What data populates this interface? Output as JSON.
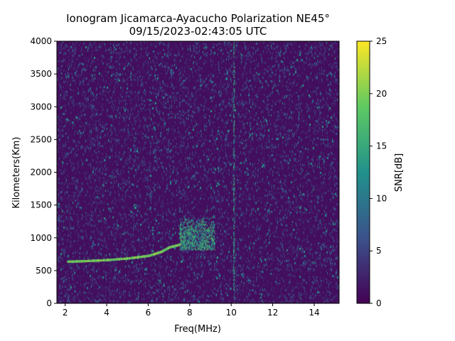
{
  "chart_data": {
    "type": "heatmap",
    "title": "Ionogram Jicamarca-Ayacucho Polarization NE45°",
    "subtitle": "09/15/2023-02:43:05 UTC",
    "xlabel": "Freq(MHz)",
    "ylabel": "Kilometers(Km)",
    "xlim": [
      1.6,
      15.2
    ],
    "ylim": [
      0,
      4000
    ],
    "xticks": [
      2,
      4,
      6,
      8,
      10,
      12,
      14
    ],
    "yticks": [
      0,
      500,
      1000,
      1500,
      2000,
      2500,
      3000,
      3500,
      4000
    ],
    "colorbar": {
      "label": "SNR[dB]",
      "range": [
        0,
        25
      ],
      "ticks": [
        0,
        5,
        10,
        15,
        20,
        25
      ],
      "colormap": "viridis",
      "colors": [
        "#440154",
        "#3b528b",
        "#21918c",
        "#5ec962",
        "#fde725"
      ]
    },
    "background_snr": 1,
    "echo_trace": {
      "description_points": [
        {
          "freq": 2.1,
          "height": 640
        },
        {
          "freq": 3.0,
          "height": 650
        },
        {
          "freq": 4.0,
          "height": 665
        },
        {
          "freq": 5.0,
          "height": 690
        },
        {
          "freq": 6.0,
          "height": 730
        },
        {
          "freq": 6.6,
          "height": 790
        },
        {
          "freq": 7.0,
          "height": 860
        },
        {
          "freq": 7.5,
          "height": 900
        }
      ],
      "snr": 22
    },
    "spread_echo": {
      "freq_range": [
        7.5,
        9.2
      ],
      "height_range": [
        820,
        1350
      ],
      "snr": 14
    },
    "vertical_line": {
      "freq": 10.1,
      "height_range": [
        0,
        4000
      ],
      "snr": 18
    },
    "grid": false
  }
}
